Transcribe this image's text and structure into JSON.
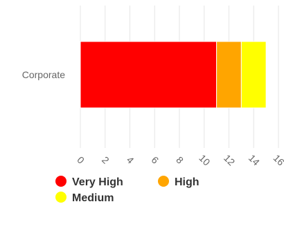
{
  "chart_data": {
    "type": "bar",
    "orientation": "horizontal",
    "stacked": true,
    "categories": [
      "Corporate"
    ],
    "series": [
      {
        "name": "Very High",
        "color": "#ff0000",
        "values": [
          11
        ]
      },
      {
        "name": "High",
        "color": "#ffa500",
        "values": [
          2
        ]
      },
      {
        "name": "Medium",
        "color": "#ffff00",
        "values": [
          2
        ]
      }
    ],
    "xlim": [
      0,
      16
    ],
    "x_ticks": [
      "0",
      "2",
      "4",
      "6",
      "8",
      "10",
      "12",
      "14",
      "16"
    ],
    "grid": true,
    "legend_position": "bottom-left"
  }
}
